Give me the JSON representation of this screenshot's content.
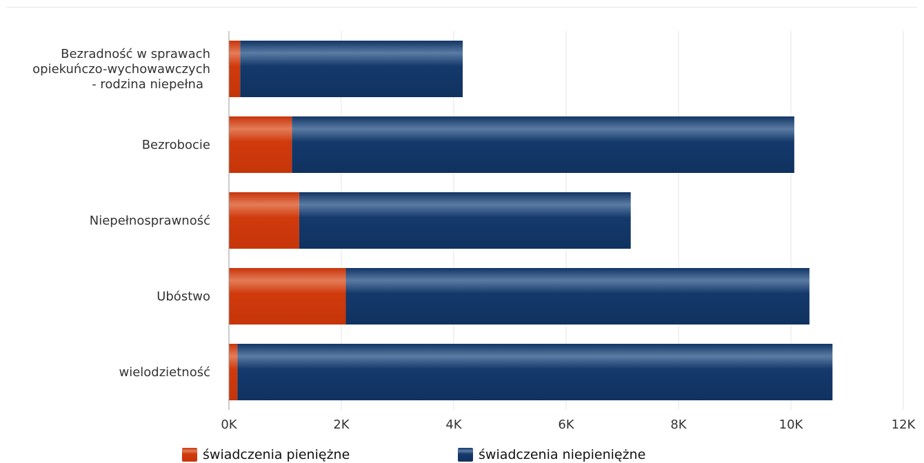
{
  "colors": {
    "series_0": "#d03a0d",
    "series_1": "#14396b",
    "grid": "#e6e6e6",
    "axis": "#999999"
  },
  "chart_data": {
    "type": "bar",
    "orientation": "horizontal",
    "stacked": true,
    "categories": [
      [
        "Bezradność w sprawach",
        "opiekuńczo-wychowawczych",
        "- rodzina niepełna"
      ],
      [
        "Bezrobocie"
      ],
      [
        "Niepełnosprawność"
      ],
      [
        "Ubóstwo"
      ],
      [
        "wielodzietność"
      ]
    ],
    "series": [
      {
        "name": "świadczenia pieniężne",
        "values": [
          200,
          1120,
          1250,
          2080,
          150
        ]
      },
      {
        "name": "świadczenia niepieniężne",
        "values": [
          3960,
          8940,
          5900,
          8250,
          10590
        ]
      }
    ],
    "xlim": [
      0,
      12000
    ],
    "xticks": [
      0,
      2000,
      4000,
      6000,
      8000,
      10000,
      12000
    ],
    "xtick_labels": [
      "0K",
      "2K",
      "4K",
      "6K",
      "8K",
      "10K",
      "12K"
    ],
    "grid": true,
    "legend_position": "bottom"
  }
}
